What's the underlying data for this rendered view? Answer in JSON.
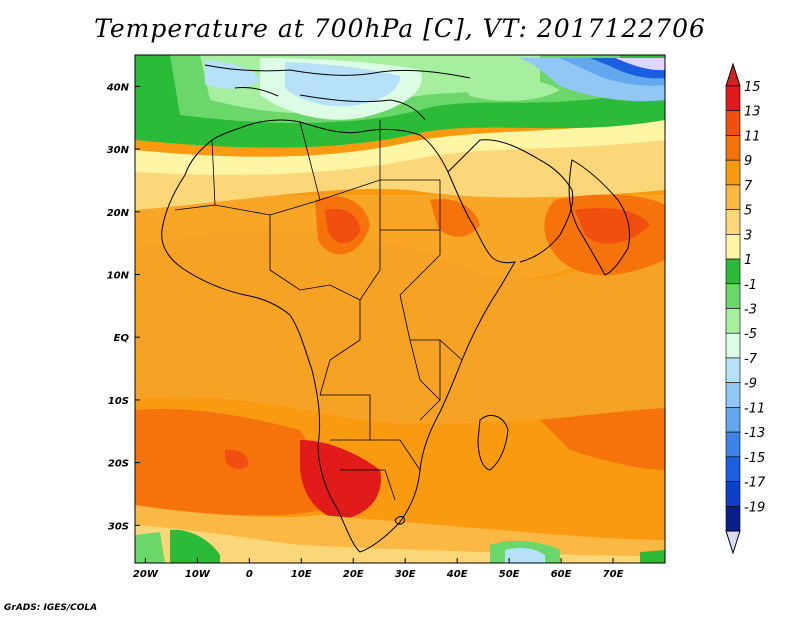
{
  "title": "Temperature at 700hPa [C], VT: 2017122706",
  "credit": "GrADS: IGES/COLA",
  "map": {
    "lon_range": [
      -22,
      80
    ],
    "lat_range": [
      -36,
      45
    ],
    "lon_ticks": [
      "20W",
      "10W",
      "0",
      "10E",
      "20E",
      "30E",
      "40E",
      "50E",
      "60E",
      "70E"
    ],
    "lon_tick_values": [
      -20,
      -10,
      0,
      10,
      20,
      30,
      40,
      50,
      60,
      70
    ],
    "lat_ticks": [
      "40N",
      "30N",
      "20N",
      "10N",
      "EQ",
      "10S",
      "20S",
      "30S"
    ],
    "lat_tick_values": [
      40,
      30,
      20,
      10,
      0,
      -10,
      -20,
      -30
    ]
  },
  "colorbar": {
    "labels": [
      "15",
      "13",
      "11",
      "9",
      "7",
      "5",
      "3",
      "1",
      "-1",
      "-3",
      "-5",
      "-7",
      "-9",
      "-11",
      "-13",
      "-15",
      "-17",
      "-19"
    ],
    "colors": [
      "#e11a1a",
      "#f04f10",
      "#f5730a",
      "#f99a10",
      "#fbb845",
      "#fcd77a",
      "#fef6a5",
      "#2bbb39",
      "#6bd76b",
      "#a6ef9f",
      "#dcfce6",
      "#b7e1f9",
      "#90c7f4",
      "#63a8ee",
      "#3c84e8",
      "#1b5ee0",
      "#0e3fc9",
      "#0b1f8c"
    ],
    "under_color": "#d9d9ff",
    "over_color": "#d42020"
  }
}
